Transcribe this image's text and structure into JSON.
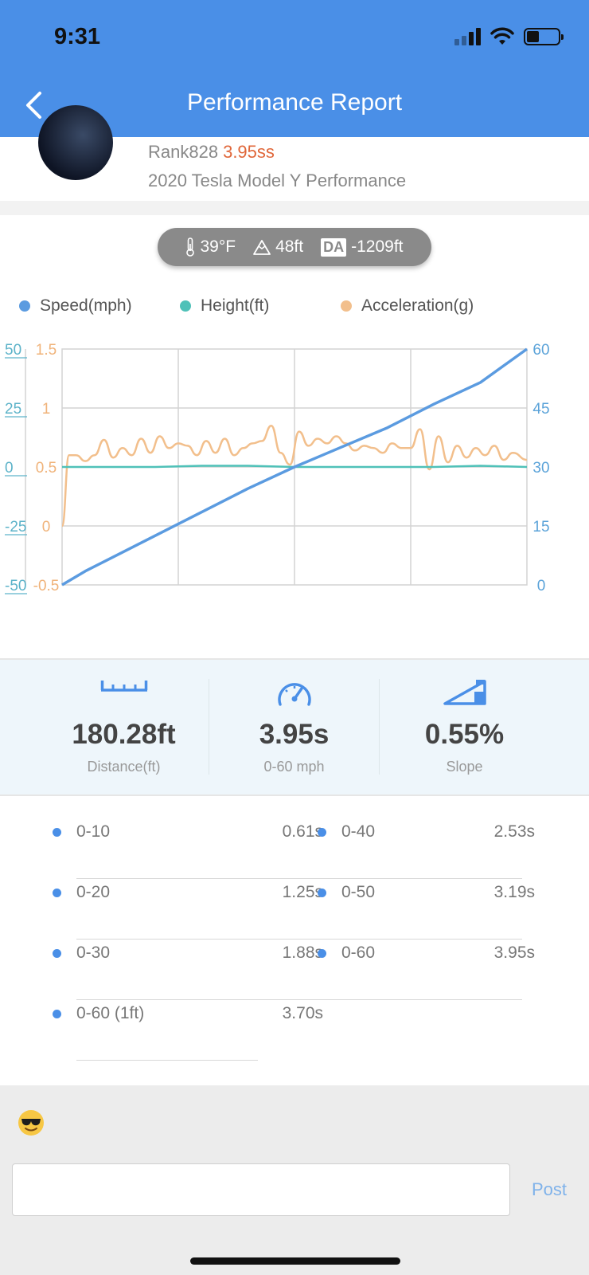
{
  "status_bar": {
    "time": "9:31"
  },
  "nav": {
    "title": "Performance Report"
  },
  "profile": {
    "rank": "Rank828",
    "rank_time": "3.95ss",
    "car": "2020 Tesla Model Y Performance"
  },
  "conditions": {
    "temperature": "39°F",
    "elevation": "48ft",
    "da_label": "DA",
    "density_altitude": "-1209ft"
  },
  "legend": {
    "speed": "Speed(mph)",
    "height": "Height(ft)",
    "acceleration": "Acceleration(g)"
  },
  "colors": {
    "header": "#4a8fe7",
    "speed": "#5b9be0",
    "height": "#4fc1b8",
    "acceleration": "#f2bf8c",
    "rank_time": "#e0673a"
  },
  "chart_data": {
    "type": "line",
    "grid": true,
    "axes": {
      "height_left": {
        "ticks": [
          "50",
          "25",
          "0",
          "-25",
          "-50"
        ],
        "range": [
          -50,
          50
        ]
      },
      "accel_left": {
        "ticks": [
          "1.5",
          "1",
          "0.5",
          "0",
          "-0.5"
        ],
        "range": [
          -0.5,
          1.5
        ]
      },
      "speed_right": {
        "ticks": [
          "60",
          "45",
          "30",
          "15",
          "0"
        ],
        "range": [
          0,
          60
        ]
      }
    },
    "x_range": [
      0,
      100
    ],
    "series": [
      {
        "name": "Speed(mph)",
        "axis": "speed_right",
        "x": [
          0,
          5,
          10,
          20,
          30,
          40,
          50,
          60,
          70,
          80,
          90,
          100
        ],
        "y": [
          0,
          3.5,
          6.5,
          12.5,
          18.5,
          24.5,
          30,
          35,
          40,
          46,
          51.5,
          60
        ]
      },
      {
        "name": "Height(ft)",
        "axis": "height_left",
        "x": [
          0,
          10,
          20,
          30,
          40,
          50,
          60,
          70,
          80,
          90,
          100
        ],
        "y": [
          0,
          0,
          0,
          0.5,
          0.5,
          0,
          0,
          0,
          0,
          0.5,
          0
        ]
      },
      {
        "name": "Acceleration(g)",
        "axis": "accel_left",
        "x": [
          0,
          1.5,
          3,
          5,
          7,
          9,
          11,
          13,
          15,
          17,
          19,
          21,
          23,
          25,
          27,
          29,
          31,
          33,
          35,
          37,
          39,
          41,
          43,
          45,
          47,
          49,
          51,
          53,
          55,
          57,
          59,
          61,
          63,
          65,
          67,
          69,
          71,
          73,
          75,
          77,
          79,
          81,
          83,
          85,
          87,
          89,
          91,
          93,
          95,
          97,
          100
        ],
        "y": [
          0,
          0.6,
          0.6,
          0.55,
          0.6,
          0.73,
          0.58,
          0.66,
          0.6,
          0.74,
          0.62,
          0.76,
          0.66,
          0.7,
          0.68,
          0.6,
          0.72,
          0.62,
          0.74,
          0.6,
          0.66,
          0.7,
          0.72,
          0.85,
          0.62,
          0.52,
          0.8,
          0.68,
          0.74,
          0.7,
          0.76,
          0.7,
          0.64,
          0.68,
          0.66,
          0.62,
          0.7,
          0.66,
          0.66,
          0.82,
          0.48,
          0.76,
          0.54,
          0.68,
          0.58,
          0.66,
          0.6,
          0.68,
          0.56,
          0.62,
          0.56
        ]
      }
    ]
  },
  "stats": [
    {
      "icon": "ruler-icon",
      "value": "180.28ft",
      "label": "Distance(ft)"
    },
    {
      "icon": "speedometer-icon",
      "value": "3.95s",
      "label": "0-60 mph"
    },
    {
      "icon": "slope-icon",
      "value": "0.55%",
      "label": "Slope"
    }
  ],
  "splits": {
    "left": [
      {
        "name": "0-10",
        "time": "0.61s"
      },
      {
        "name": "0-20",
        "time": "1.25s"
      },
      {
        "name": "0-30",
        "time": "1.88s"
      },
      {
        "name": "0-60 (1ft)",
        "time": "3.70s"
      }
    ],
    "right": [
      {
        "name": "0-40",
        "time": "2.53s"
      },
      {
        "name": "0-50",
        "time": "3.19s"
      },
      {
        "name": "0-60",
        "time": "3.95s"
      }
    ]
  },
  "comment": {
    "emoji": "sunglasses-emoji",
    "input_value": "",
    "post_label": "Post"
  }
}
